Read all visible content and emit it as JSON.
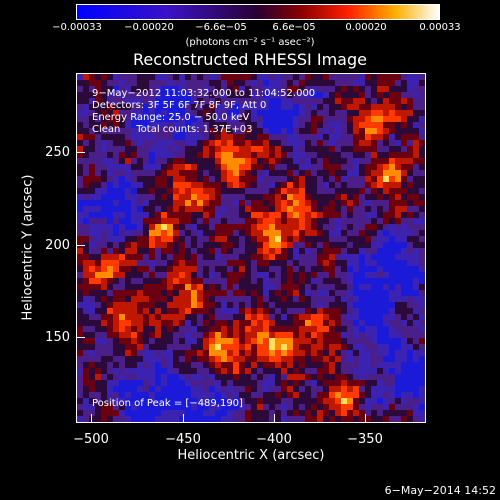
{
  "colorbar": {
    "ticks": [
      "−0.00033",
      "−0.00020",
      "−6.6e−05",
      "6.6e−05",
      "0.00020",
      "0.00033"
    ],
    "unit_label": "(photons cm⁻² s⁻¹ asec⁻²)",
    "vmin": -0.00033,
    "vmax": 0.00033
  },
  "title": "Reconstructed RHESSI Image",
  "info": {
    "time_range": "9−May−2012 11:03:32.000 to 11:04:52.000",
    "detectors": "Detectors: 3F 5F 6F 7F 8F 9F, Att 0",
    "energy": "Energy Range: 25.0 − 50.0 keV",
    "clean": "Clean     Total counts: 1.37E+03",
    "peak": "Position of Peak = [−489,190]"
  },
  "axes": {
    "xlabel": "Heliocentric X (arcsec)",
    "ylabel": "Heliocentric Y (arcsec)",
    "xticks": [
      "−500",
      "−450",
      "−400",
      "−350"
    ],
    "yticks": [
      "250",
      "200",
      "150"
    ],
    "xlim": [
      -508,
      -316
    ],
    "ylim": [
      100,
      290
    ]
  },
  "footer": "6−May−2014 14:52"
}
